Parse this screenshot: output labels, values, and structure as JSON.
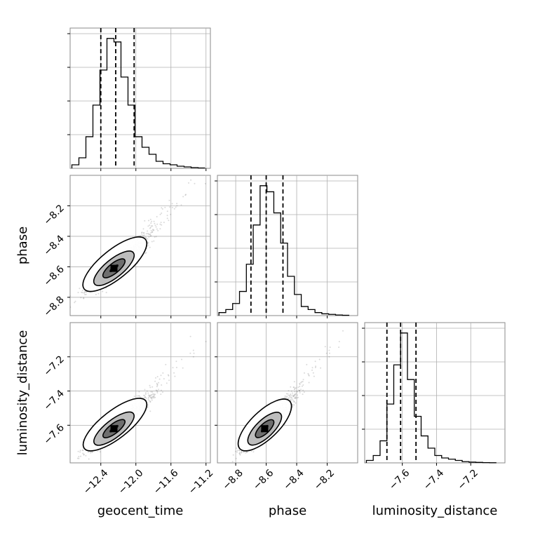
{
  "chart_data": {
    "type": "corner",
    "title": "",
    "parameters": [
      "geocent_time",
      "phase",
      "luminosity_distance"
    ],
    "grid": true,
    "diagonal": [
      {
        "parameter": "geocent_time",
        "xlim": [
          -12.75,
          -11.15
        ],
        "bin_edges": [
          -12.73,
          -12.65,
          -12.57,
          -12.49,
          -12.41,
          -12.33,
          -12.25,
          -12.17,
          -12.09,
          -12.01,
          -11.93,
          -11.85,
          -11.77,
          -11.69,
          -11.61,
          -11.53,
          -11.45,
          -11.37,
          -11.29,
          -11.21
        ],
        "counts": [
          1,
          3,
          9,
          18,
          28,
          37,
          36,
          26,
          18,
          9,
          6,
          4,
          2,
          1.3,
          1,
          0.6,
          0.4,
          0.2,
          0.1
        ],
        "quantiles": [
          -12.4,
          -12.23,
          -12.02
        ],
        "xticks": [
          "−12.4",
          "−12.0",
          "−11.6",
          "−11.2"
        ],
        "xtick_values": [
          -12.4,
          -12.0,
          -11.6,
          -11.2
        ]
      },
      {
        "parameter": "phase",
        "xlim": [
          -8.92,
          -8.0
        ],
        "bin_edges": [
          -8.91,
          -8.865,
          -8.82,
          -8.775,
          -8.73,
          -8.685,
          -8.64,
          -8.595,
          -8.55,
          -8.505,
          -8.46,
          -8.415,
          -8.37,
          -8.325,
          -8.28,
          -8.235,
          -8.19,
          -8.145,
          -8.1,
          -8.055
        ],
        "counts": [
          1,
          2,
          4,
          8,
          17,
          30,
          43,
          41,
          34,
          24,
          13,
          7,
          3,
          2,
          1,
          0.6,
          0.4,
          0.2,
          0.1
        ],
        "quantiles": [
          -8.7,
          -8.6,
          -8.49
        ],
        "xticks": [
          "−8.8",
          "−8.6",
          "−8.4",
          "−8.2"
        ],
        "xtick_values": [
          -8.8,
          -8.6,
          -8.4,
          -8.2
        ]
      },
      {
        "parameter": "luminosity_distance",
        "xlim": [
          -7.82,
          -7.0
        ],
        "bin_edges": [
          -7.81,
          -7.77,
          -7.73,
          -7.69,
          -7.65,
          -7.61,
          -7.57,
          -7.53,
          -7.49,
          -7.45,
          -7.41,
          -7.37,
          -7.33,
          -7.29,
          -7.25,
          -7.21,
          -7.17,
          -7.13,
          -7.09,
          -7.05
        ],
        "counts": [
          1,
          3,
          9,
          24,
          40,
          53,
          34,
          19,
          11,
          6,
          3,
          2,
          1.5,
          1,
          0.5,
          0.3,
          0.2,
          0.1,
          0.05
        ],
        "quantiles": [
          -7.69,
          -7.61,
          -7.52
        ],
        "xticks": [
          "−7.6",
          "−7.4",
          "−7.2"
        ],
        "xtick_values": [
          -7.6,
          -7.4,
          -7.2
        ]
      }
    ],
    "pairs": [
      {
        "x": "geocent_time",
        "y": "phase",
        "xlim": [
          -12.75,
          -11.15
        ],
        "ylim": [
          -8.92,
          -8.0
        ],
        "center": [
          -12.25,
          -8.61
        ],
        "spread": [
          0.15,
          0.07
        ],
        "corr": 0.9,
        "yticks": [
          "−8.8",
          "−8.6",
          "−8.4",
          "−8.2"
        ],
        "ytick_values": [
          -8.8,
          -8.6,
          -8.4,
          -8.2
        ]
      },
      {
        "x": "geocent_time",
        "y": "luminosity_distance",
        "xlim": [
          -12.75,
          -11.15
        ],
        "ylim": [
          -7.82,
          -7.0
        ],
        "center": [
          -12.25,
          -7.62
        ],
        "spread": [
          0.15,
          0.06
        ],
        "corr": 0.9,
        "yticks": [
          "−7.6",
          "−7.4",
          "−7.2"
        ],
        "ytick_values": [
          -7.6,
          -7.4,
          -7.2
        ]
      },
      {
        "x": "phase",
        "y": "luminosity_distance",
        "xlim": [
          -8.92,
          -8.0
        ],
        "ylim": [
          -7.82,
          -7.0
        ],
        "center": [
          -8.61,
          -7.62
        ],
        "spread": [
          0.07,
          0.06
        ],
        "corr": 0.9
      }
    ],
    "xlabels": [
      "geocent_time",
      "phase",
      "luminosity_distance"
    ],
    "ylabels": [
      "phase",
      "luminosity_distance"
    ]
  }
}
